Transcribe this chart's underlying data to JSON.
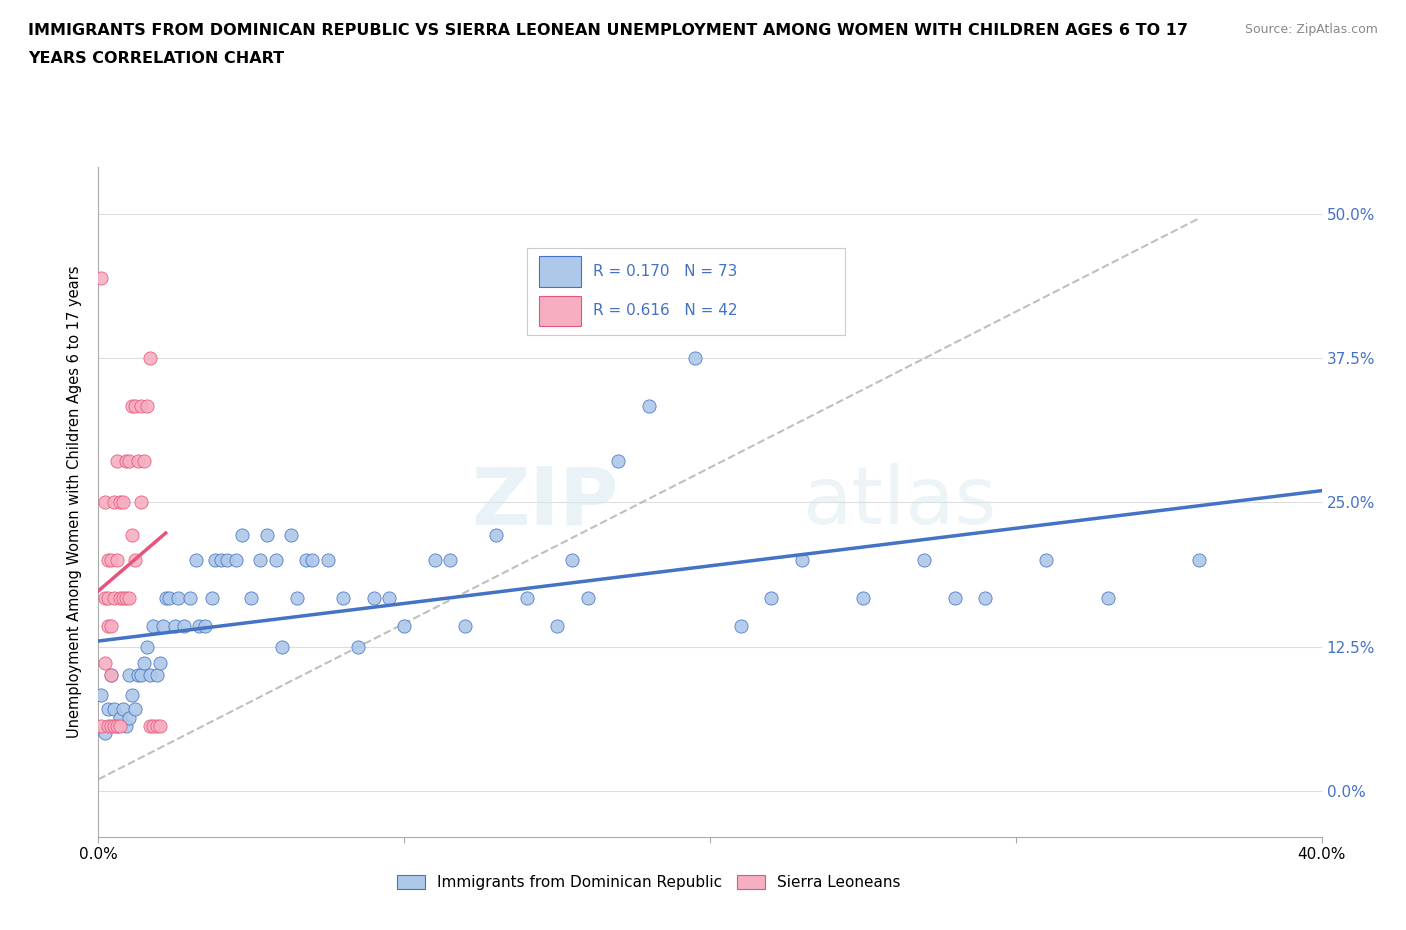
{
  "title_line1": "IMMIGRANTS FROM DOMINICAN REPUBLIC VS SIERRA LEONEAN UNEMPLOYMENT AMONG WOMEN WITH CHILDREN AGES 6 TO 17",
  "title_line2": "YEARS CORRELATION CHART",
  "source": "Source: ZipAtlas.com",
  "ylabel": "Unemployment Among Women with Children Ages 6 to 17 years",
  "xlim": [
    0.0,
    0.4
  ],
  "ylim": [
    -0.04,
    0.54
  ],
  "yticks": [
    0.0,
    0.125,
    0.25,
    0.375,
    0.5
  ],
  "ytick_labels": [
    "0.0%",
    "12.5%",
    "25.0%",
    "37.5%",
    "50.0%"
  ],
  "xticks": [
    0.0,
    0.1,
    0.2,
    0.3,
    0.4
  ],
  "xtick_labels": [
    "0.0%",
    "",
    "",
    "",
    "40.0%"
  ],
  "blue_R": 0.17,
  "blue_N": 73,
  "pink_R": 0.616,
  "pink_N": 42,
  "blue_color": "#adc8e8",
  "pink_color": "#f5afc0",
  "blue_line_color": "#4472c4",
  "pink_line_color": "#e8537a",
  "trendline_dashed_color": "#b0b0b0",
  "watermark_zip": "ZIP",
  "watermark_atlas": "atlas",
  "blue_scatter": [
    [
      0.001,
      0.083
    ],
    [
      0.002,
      0.05
    ],
    [
      0.003,
      0.071
    ],
    [
      0.004,
      0.1
    ],
    [
      0.005,
      0.071
    ],
    [
      0.006,
      0.056
    ],
    [
      0.007,
      0.063
    ],
    [
      0.008,
      0.071
    ],
    [
      0.009,
      0.056
    ],
    [
      0.01,
      0.063
    ],
    [
      0.01,
      0.1
    ],
    [
      0.011,
      0.083
    ],
    [
      0.012,
      0.071
    ],
    [
      0.013,
      0.1
    ],
    [
      0.014,
      0.1
    ],
    [
      0.015,
      0.111
    ],
    [
      0.016,
      0.125
    ],
    [
      0.017,
      0.1
    ],
    [
      0.018,
      0.143
    ],
    [
      0.019,
      0.1
    ],
    [
      0.02,
      0.111
    ],
    [
      0.021,
      0.143
    ],
    [
      0.022,
      0.167
    ],
    [
      0.023,
      0.167
    ],
    [
      0.025,
      0.143
    ],
    [
      0.026,
      0.167
    ],
    [
      0.028,
      0.143
    ],
    [
      0.03,
      0.167
    ],
    [
      0.032,
      0.2
    ],
    [
      0.033,
      0.143
    ],
    [
      0.035,
      0.143
    ],
    [
      0.037,
      0.167
    ],
    [
      0.038,
      0.2
    ],
    [
      0.04,
      0.2
    ],
    [
      0.042,
      0.2
    ],
    [
      0.045,
      0.2
    ],
    [
      0.047,
      0.222
    ],
    [
      0.05,
      0.167
    ],
    [
      0.053,
      0.2
    ],
    [
      0.055,
      0.222
    ],
    [
      0.058,
      0.2
    ],
    [
      0.06,
      0.125
    ],
    [
      0.063,
      0.222
    ],
    [
      0.065,
      0.167
    ],
    [
      0.068,
      0.2
    ],
    [
      0.07,
      0.2
    ],
    [
      0.075,
      0.2
    ],
    [
      0.08,
      0.167
    ],
    [
      0.085,
      0.125
    ],
    [
      0.09,
      0.167
    ],
    [
      0.095,
      0.167
    ],
    [
      0.1,
      0.143
    ],
    [
      0.11,
      0.2
    ],
    [
      0.115,
      0.2
    ],
    [
      0.12,
      0.143
    ],
    [
      0.13,
      0.222
    ],
    [
      0.14,
      0.167
    ],
    [
      0.15,
      0.143
    ],
    [
      0.155,
      0.2
    ],
    [
      0.16,
      0.167
    ],
    [
      0.17,
      0.286
    ],
    [
      0.18,
      0.333
    ],
    [
      0.195,
      0.375
    ],
    [
      0.21,
      0.143
    ],
    [
      0.22,
      0.167
    ],
    [
      0.23,
      0.2
    ],
    [
      0.25,
      0.167
    ],
    [
      0.27,
      0.2
    ],
    [
      0.28,
      0.167
    ],
    [
      0.29,
      0.167
    ],
    [
      0.31,
      0.2
    ],
    [
      0.33,
      0.167
    ],
    [
      0.36,
      0.2
    ]
  ],
  "pink_scatter": [
    [
      0.001,
      0.444
    ],
    [
      0.001,
      0.056
    ],
    [
      0.002,
      0.25
    ],
    [
      0.002,
      0.167
    ],
    [
      0.002,
      0.111
    ],
    [
      0.003,
      0.2
    ],
    [
      0.003,
      0.167
    ],
    [
      0.003,
      0.143
    ],
    [
      0.003,
      0.056
    ],
    [
      0.004,
      0.2
    ],
    [
      0.004,
      0.143
    ],
    [
      0.004,
      0.1
    ],
    [
      0.004,
      0.056
    ],
    [
      0.005,
      0.25
    ],
    [
      0.005,
      0.167
    ],
    [
      0.005,
      0.056
    ],
    [
      0.006,
      0.286
    ],
    [
      0.006,
      0.2
    ],
    [
      0.006,
      0.056
    ],
    [
      0.007,
      0.25
    ],
    [
      0.007,
      0.167
    ],
    [
      0.007,
      0.056
    ],
    [
      0.008,
      0.25
    ],
    [
      0.008,
      0.167
    ],
    [
      0.009,
      0.286
    ],
    [
      0.009,
      0.167
    ],
    [
      0.01,
      0.286
    ],
    [
      0.01,
      0.167
    ],
    [
      0.011,
      0.333
    ],
    [
      0.011,
      0.222
    ],
    [
      0.012,
      0.333
    ],
    [
      0.012,
      0.2
    ],
    [
      0.013,
      0.286
    ],
    [
      0.014,
      0.333
    ],
    [
      0.014,
      0.25
    ],
    [
      0.015,
      0.286
    ],
    [
      0.016,
      0.333
    ],
    [
      0.017,
      0.375
    ],
    [
      0.017,
      0.056
    ],
    [
      0.018,
      0.056
    ],
    [
      0.019,
      0.056
    ],
    [
      0.02,
      0.056
    ]
  ]
}
